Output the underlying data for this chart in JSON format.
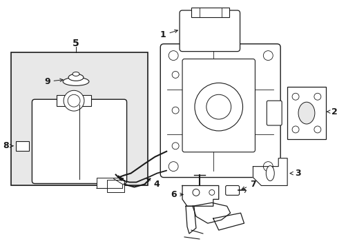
{
  "background_color": "#ffffff",
  "line_color": "#1a1a1a",
  "fig_width": 4.89,
  "fig_height": 3.6,
  "dpi": 100,
  "inset_fill": "#e8e8e8",
  "label_fontsize": 9,
  "arrow_lw": 0.7
}
